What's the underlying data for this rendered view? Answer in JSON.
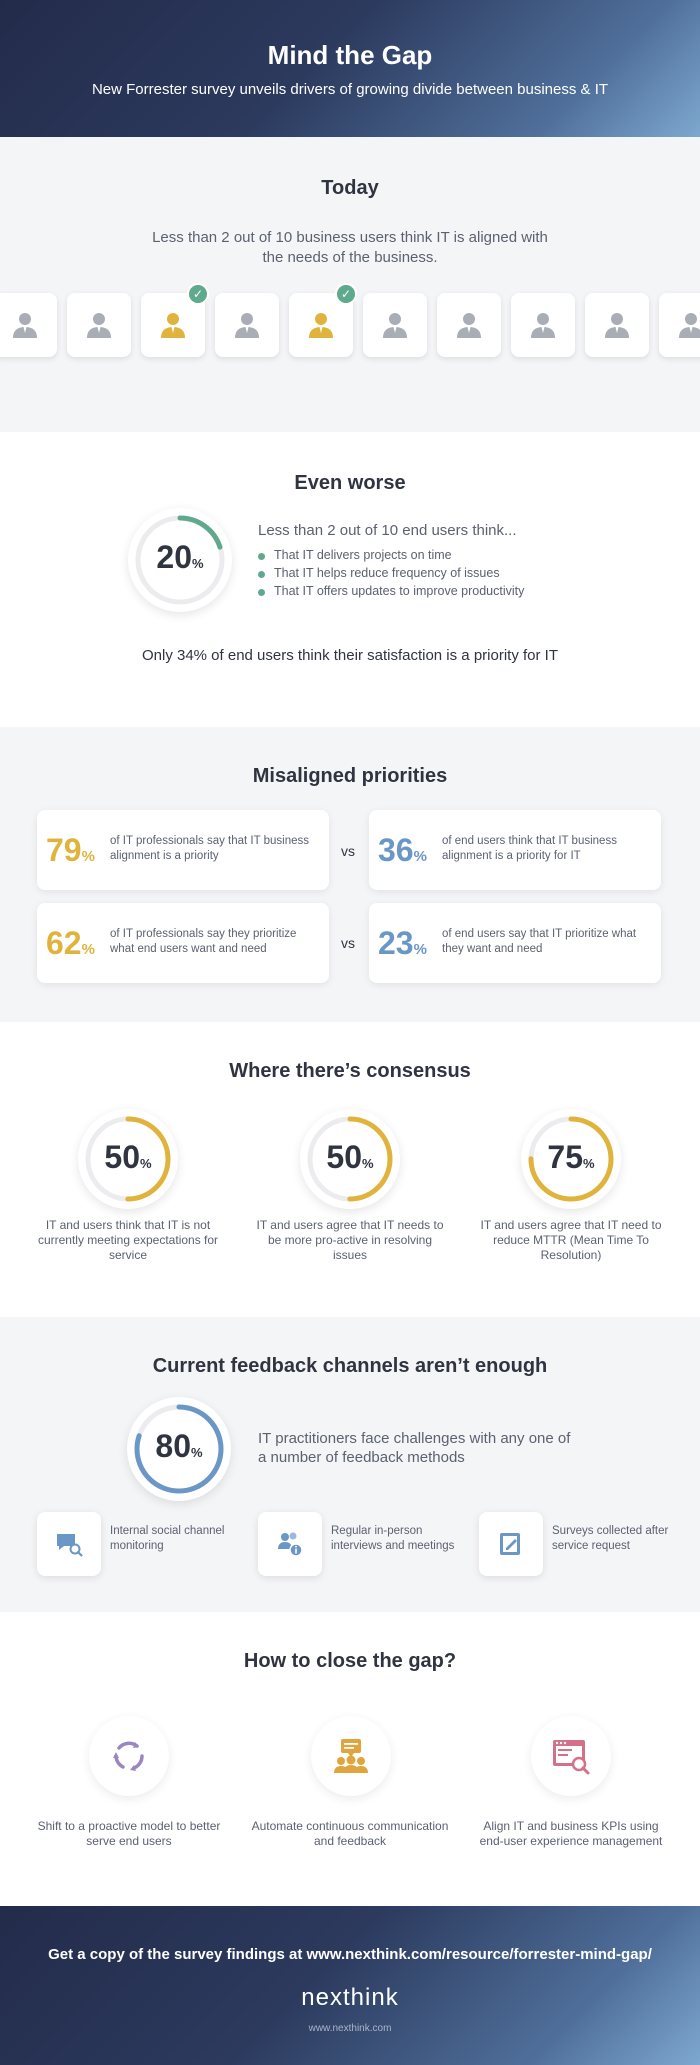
{
  "header": {
    "title": "Mind the Gap",
    "subtitle": "New Forrester survey unveils drivers of growing divide between business & IT"
  },
  "today": {
    "title": "Today",
    "lead": "Less than 2 out of 10 business users think IT is aligned with the needs of the business.",
    "users": [
      {
        "aligned": false
      },
      {
        "aligned": false
      },
      {
        "aligned": true
      },
      {
        "aligned": false
      },
      {
        "aligned": true
      },
      {
        "aligned": false
      },
      {
        "aligned": false
      },
      {
        "aligned": false
      },
      {
        "aligned": false
      },
      {
        "aligned": false
      }
    ]
  },
  "worse": {
    "title": "Even worse",
    "value": "20",
    "unit": "%",
    "fraction": 0.2,
    "intro": "Less than 2 out of 10 end users think...",
    "items": [
      "That IT delivers projects on time",
      "That IT helps reduce frequency of issues",
      "That IT offers updates to improve productivity"
    ],
    "footnote": "Only 34% of end users think their satisfaction is a priority for IT"
  },
  "priorities": {
    "title": "Misaligned priorities",
    "vs_label": "vs",
    "rows": [
      {
        "left": {
          "value": "79",
          "unit": "%",
          "text": "of IT professionals say that IT business alignment is a priority"
        },
        "right": {
          "value": "36",
          "unit": "%",
          "text": "of end users think that IT business alignment is a priority for IT"
        }
      },
      {
        "left": {
          "value": "62",
          "unit": "%",
          "text": "of IT professionals say they prioritize what end users want and need"
        },
        "right": {
          "value": "23",
          "unit": "%",
          "text": "of end users say that IT prioritize what they want and need"
        }
      }
    ]
  },
  "consensus": {
    "title": "Where there’s consensus",
    "items": [
      {
        "value": "50",
        "unit": "%",
        "fraction": 0.5,
        "text": "IT and users think that IT is not currently meeting expectations for service"
      },
      {
        "value": "50",
        "unit": "%",
        "fraction": 0.5,
        "text": "IT and users agree that IT needs to be more pro-active in resolving issues"
      },
      {
        "value": "75",
        "unit": "%",
        "fraction": 0.75,
        "text": "IT and users agree that IT need to reduce MTTR (Mean Time To Resolution)"
      }
    ]
  },
  "feedback": {
    "title": "Current feedback channels aren’t enough",
    "value": "80",
    "unit": "%",
    "fraction": 0.8,
    "text": "IT practitioners face challenges with any one of a number of feedback methods",
    "methods": [
      {
        "icon": "chat-search-icon",
        "label": "Internal social channel monitoring"
      },
      {
        "icon": "people-info-icon",
        "label": "Regular in-person interviews and meetings"
      },
      {
        "icon": "survey-edit-icon",
        "label": "Surveys collected after service request"
      }
    ]
  },
  "close": {
    "title": "How to close the gap?",
    "items": [
      {
        "icon": "cycle-arrows-icon",
        "label": "Shift to a proactive model to better serve end users"
      },
      {
        "icon": "team-chat-icon",
        "label": "Automate continuous communication and feedback"
      },
      {
        "icon": "dashboard-search-icon",
        "label": "Align IT and business KPIs using end-user experience management"
      }
    ]
  },
  "footer": {
    "cta": "Get a copy of the survey findings at www.nexthink.com/resource/forrester-mind-gap/",
    "logo": "nexthink",
    "url": "www.nexthink.com"
  },
  "colors": {
    "gold": "#e0b43c",
    "blue": "#6b97c6",
    "green": "#5fa98c",
    "purple": "#9a86c0",
    "pink": "#d4708a",
    "orange": "#e0a53c"
  }
}
